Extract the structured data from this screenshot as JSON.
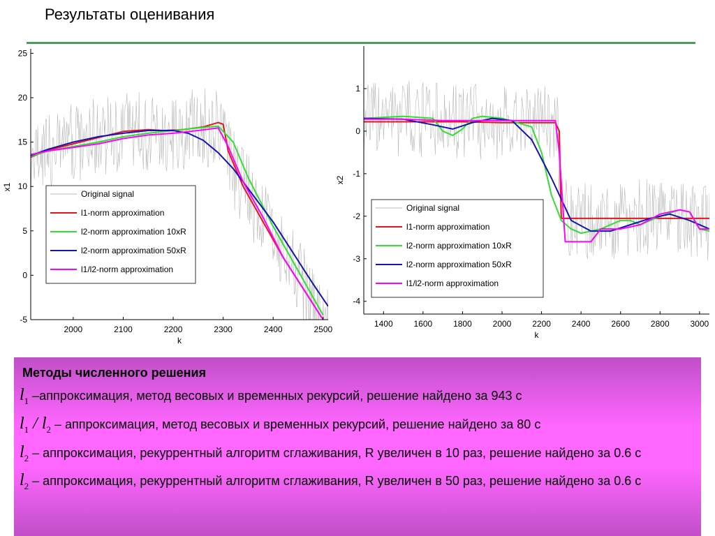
{
  "slide": {
    "title": "Результаты оценивания"
  },
  "chart_data": [
    {
      "type": "line",
      "xlabel": "k",
      "ylabel": "x1",
      "xlim": [
        1915,
        2510
      ],
      "ylim": [
        -5,
        25.5
      ],
      "xticks": [
        2000,
        2100,
        2200,
        2300,
        2400,
        2500
      ],
      "yticks": [
        -5,
        0,
        5,
        10,
        15,
        20,
        25
      ],
      "legend_position": "lower-left",
      "colors": {
        "original": "#b8b8b8",
        "l1": "#e8141c",
        "l2_10": "#2fe02f",
        "l2_50": "#1414b4",
        "l1l2": "#ff00ff"
      },
      "series": [
        {
          "name": "Original signal",
          "x": [
            1915,
            1950,
            2000,
            2050,
            2100,
            2150,
            2200,
            2250,
            2290,
            2320,
            2360,
            2400,
            2440,
            2480,
            2510
          ],
          "values": [
            13.5,
            14.2,
            15,
            15.5,
            16,
            16.2,
            16.2,
            16.5,
            16.8,
            12,
            8,
            5,
            1,
            -3,
            -6
          ]
        },
        {
          "name": "l1-norm approximation",
          "x": [
            1915,
            1950,
            2000,
            2050,
            2100,
            2150,
            2180,
            2220,
            2260,
            2290,
            2300,
            2310,
            2340,
            2380,
            2420,
            2460,
            2500
          ],
          "values": [
            13.3,
            14.1,
            14.8,
            15.5,
            16.2,
            16.4,
            16.3,
            16.4,
            16.7,
            17.2,
            17.0,
            14,
            10,
            6,
            2,
            -1.5,
            -5
          ]
        },
        {
          "name": "l2-norm approximation 10xR",
          "x": [
            1915,
            1950,
            2000,
            2050,
            2100,
            2150,
            2200,
            2250,
            2290,
            2320,
            2350,
            2400,
            2450,
            2500
          ],
          "values": [
            13.4,
            14,
            14.5,
            15,
            15.6,
            16,
            16.3,
            16.6,
            16.8,
            15,
            11,
            5.5,
            0.5,
            -4.5
          ]
        },
        {
          "name": "l2-norm approximation 50xR",
          "x": [
            1915,
            1950,
            2000,
            2050,
            2100,
            2150,
            2200,
            2230,
            2260,
            2290,
            2320,
            2360,
            2400,
            2440,
            2480,
            2510
          ],
          "values": [
            13.5,
            14.2,
            15,
            15.6,
            16,
            16.3,
            16.3,
            16,
            15.2,
            13.8,
            12,
            9,
            6,
            2.5,
            -1,
            -3.5
          ]
        },
        {
          "name": "l1/l2-norm approximation",
          "x": [
            1915,
            1950,
            2000,
            2050,
            2100,
            2150,
            2200,
            2250,
            2290,
            2310,
            2340,
            2380,
            2420,
            2460,
            2500
          ],
          "values": [
            13.6,
            14,
            14.4,
            14.8,
            15.4,
            15.8,
            16,
            16.3,
            16.6,
            14.5,
            10.5,
            6.5,
            2,
            -1.5,
            -5
          ]
        }
      ]
    },
    {
      "type": "line",
      "xlabel": "k",
      "ylabel": "x2",
      "xlim": [
        1300,
        3050
      ],
      "ylim": [
        -4.3,
        2
      ],
      "xticks": [
        1400,
        1600,
        1800,
        2000,
        2200,
        2400,
        2600,
        2800,
        3000
      ],
      "yticks": [
        -4,
        -3,
        -2,
        -1,
        0,
        1
      ],
      "legend_position": "lower-left",
      "colors": {
        "original": "#b8b8b8",
        "l1": "#e8141c",
        "l2_10": "#2fe02f",
        "l2_50": "#1414b4",
        "l1l2": "#ff00ff"
      },
      "series": [
        {
          "name": "Original signal",
          "x": [
            1300,
            1500,
            1800,
            2100,
            2280,
            2300,
            2500,
            2700,
            2900,
            3050
          ],
          "values": [
            0.3,
            0.3,
            0.2,
            0.25,
            0.25,
            -2,
            -2.2,
            -2,
            -2,
            -2.2
          ]
        },
        {
          "name": "l1-norm approximation",
          "x": [
            1300,
            1800,
            2000,
            2270,
            2290,
            2300,
            2500,
            2700,
            2900,
            3050
          ],
          "values": [
            0.22,
            0.22,
            0.2,
            0.2,
            0,
            -2.05,
            -2.05,
            -2.05,
            -2.05,
            -2.05
          ]
        },
        {
          "name": "l2-norm approximation 10xR",
          "x": [
            1300,
            1500,
            1650,
            1700,
            1750,
            1800,
            1850,
            1900,
            2000,
            2150,
            2200,
            2250,
            2300,
            2350,
            2400,
            2500,
            2600,
            2650,
            2700,
            2800,
            2900,
            2950,
            3000,
            3050
          ],
          "values": [
            0.3,
            0.35,
            0.3,
            0,
            -0.1,
            0.05,
            0.3,
            0.35,
            0.3,
            0.1,
            -0.5,
            -1.5,
            -2.1,
            -2.3,
            -2.4,
            -2.3,
            -2.1,
            -2.1,
            -2.2,
            -2.0,
            -1.85,
            -1.9,
            -2.3,
            -2.35
          ]
        },
        {
          "name": "l2-norm approximation 50xR",
          "x": [
            1300,
            1500,
            1650,
            1750,
            1850,
            1950,
            2050,
            2150,
            2250,
            2300,
            2350,
            2450,
            2550,
            2650,
            2750,
            2850,
            2950,
            3050
          ],
          "values": [
            0.3,
            0.28,
            0.15,
            0.05,
            0.2,
            0.3,
            0.25,
            -0.2,
            -1.1,
            -1.6,
            -2.1,
            -2.35,
            -2.35,
            -2.2,
            -2.05,
            -1.95,
            -2.1,
            -2.3
          ]
        },
        {
          "name": "l1/l2-norm approximation",
          "x": [
            1300,
            1500,
            1700,
            1800,
            2000,
            2100,
            2200,
            2270,
            2290,
            2320,
            2450,
            2500,
            2600,
            2700,
            2800,
            2900,
            2950,
            3000,
            3050
          ],
          "values": [
            0.28,
            0.28,
            0.25,
            0.25,
            0.25,
            0.25,
            0.25,
            0.25,
            -0.5,
            -2.6,
            -2.6,
            -2.3,
            -2.3,
            -2.2,
            -1.95,
            -1.85,
            -1.9,
            -2.3,
            -2.3
          ]
        }
      ]
    }
  ],
  "methods": {
    "title": "Методы численного решения",
    "rows": [
      {
        "symbol_l": "l",
        "symbol_sub": "1",
        "symbol_mid": "",
        "symbol_l2": "",
        "symbol_sub2": "",
        "text": " –аппроксимация, метод весовых и временных рекурсий, решение найдено за 943 с"
      },
      {
        "symbol_l": "l",
        "symbol_sub": "1",
        "symbol_mid": " / ",
        "symbol_l2": "l",
        "symbol_sub2": "2",
        "text": " – аппроксимация, метод весовых и временных рекурсий, решение найдено за 80 с"
      },
      {
        "symbol_l": "l",
        "symbol_sub": "2",
        "symbol_mid": "",
        "symbol_l2": "",
        "symbol_sub2": "",
        "text": " – аппроксимация, рекуррентный алгоритм сглаживания, R увеличен в 10 раз, решение найдено за 0.6 с"
      },
      {
        "symbol_l": "l",
        "symbol_sub": "2",
        "symbol_mid": "",
        "symbol_l2": "",
        "symbol_sub2": "",
        "text": " – аппроксимация, рекуррентный алгоритм сглаживания, R увеличен в 50 раз, решение найдено за 0.6 с"
      }
    ]
  }
}
